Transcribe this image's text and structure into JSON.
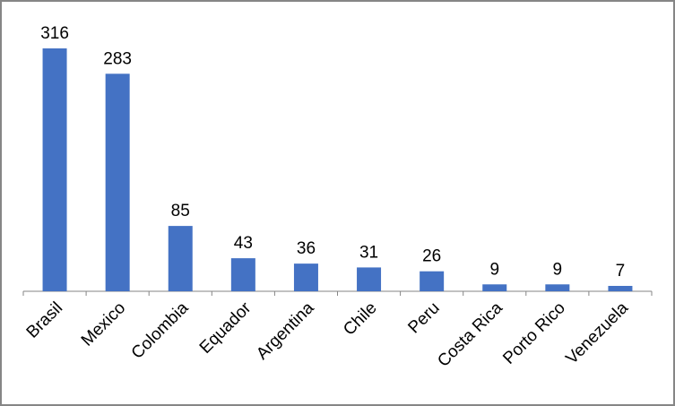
{
  "chart_data": {
    "type": "bar",
    "categories": [
      "Brasil",
      "Mexico",
      "Colombia",
      "Equador",
      "Argentina",
      "Chile",
      "Peru",
      "Costa Rica",
      "Porto Rico",
      "Venezuela"
    ],
    "values": [
      316,
      283,
      85,
      43,
      36,
      31,
      26,
      9,
      9,
      7
    ],
    "color": "#4472c4"
  }
}
